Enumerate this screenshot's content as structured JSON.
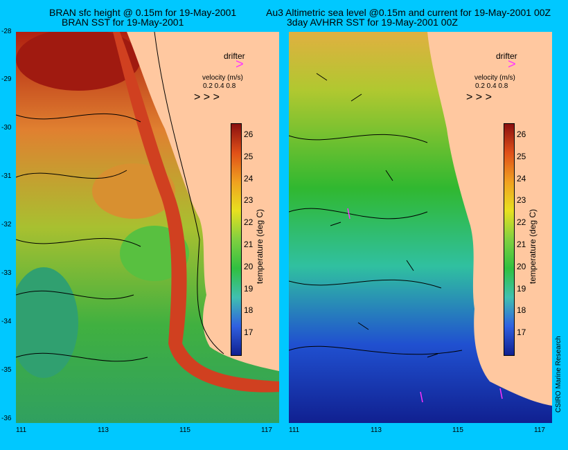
{
  "titles": {
    "left_line1": "BRAN sfc height @ 0.15m for 19-May-2001",
    "left_line2": "BRAN SST for 19-May-2001",
    "right_line1": "Au3 Altimetric sea level  @0.15m and current for 19-May-2001 00Z",
    "right_line2": "3day AVHRR SST for 19-May-2001 00Z"
  },
  "y_ticks": [
    "-28",
    "-29",
    "-30",
    "-31",
    "-32",
    "-33",
    "-34",
    "-35",
    "-36"
  ],
  "x_ticks": [
    "111",
    "113",
    "115",
    "117"
  ],
  "legend": {
    "drifter_label": "drifter",
    "velocity_title": "velocity (m/s)",
    "velocity_values": "0.2 0.4 0.8"
  },
  "colorbar": {
    "ticks": [
      "26",
      "25",
      "24",
      "23",
      "22",
      "21",
      "20",
      "19",
      "18",
      "17"
    ],
    "label": "temperature (deg C)"
  },
  "credit": "CSIRO Marine Research",
  "colors": {
    "background": "#00c8ff",
    "land": "#ffc8a0",
    "drifter": "#ff33ff"
  }
}
